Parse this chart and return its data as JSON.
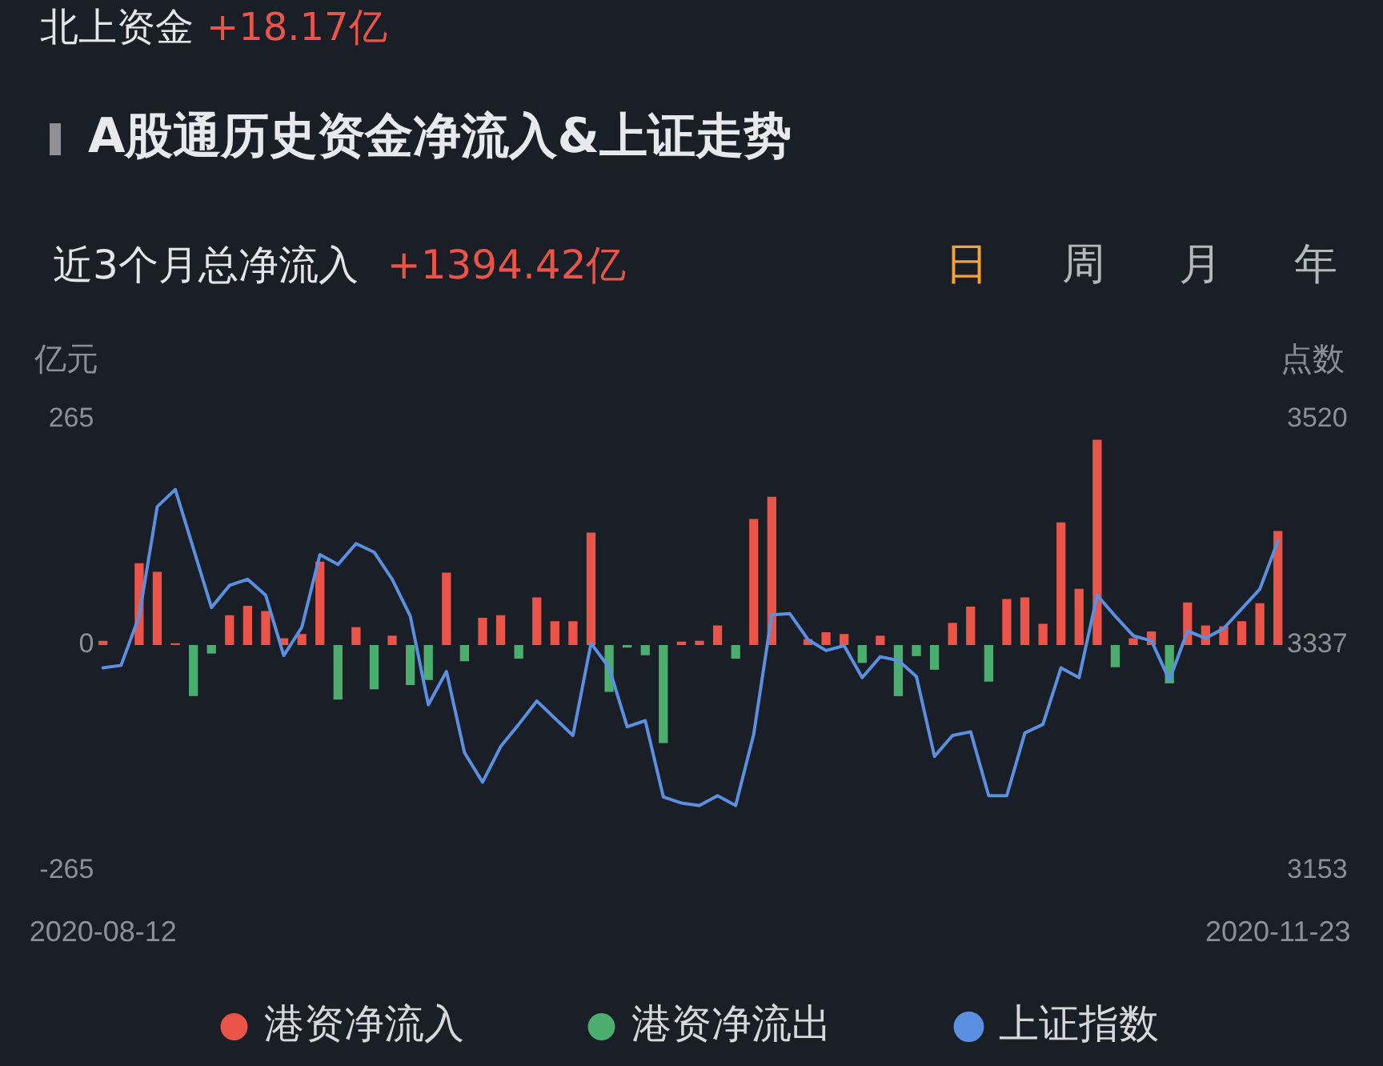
{
  "chart_data": {
    "type": "bar",
    "title": "A股通历史资金净流入&上证走势",
    "annotations": [
      "北上资金",
      "+18.17亿",
      "近3个月总净流入",
      "+1394.42亿",
      "日",
      "周",
      "月",
      "年"
    ],
    "ylabel": "亿元",
    "y2label": "点数",
    "categories": [
      "2020-08-12",
      null,
      null,
      null,
      null,
      null,
      null,
      null,
      null,
      null,
      null,
      null,
      null,
      null,
      null,
      null,
      null,
      null,
      null,
      null,
      null,
      null,
      null,
      null,
      null,
      null,
      null,
      null,
      null,
      null,
      null,
      null,
      null,
      null,
      null,
      null,
      null,
      null,
      null,
      null,
      null,
      null,
      null,
      null,
      null,
      null,
      null,
      null,
      null,
      null,
      null,
      null,
      null,
      null,
      null,
      null,
      null,
      null,
      null,
      null,
      null,
      null,
      null,
      null,
      null,
      "2020-11-23"
    ],
    "series": [
      {
        "name": "港资净流入",
        "color": "#ea5449",
        "values": [
          5,
          null,
          96,
          86,
          2,
          null,
          null,
          35,
          46,
          40,
          8,
          13,
          98,
          null,
          21,
          null,
          11,
          null,
          null,
          85,
          null,
          32,
          35,
          null,
          56,
          28,
          28,
          132,
          null,
          null,
          null,
          null,
          4,
          5,
          23,
          null,
          148,
          174,
          null,
          7,
          15,
          13,
          null,
          11,
          null,
          null,
          null,
          26,
          45,
          null,
          54,
          56,
          25,
          144,
          66,
          241,
          null,
          8,
          16,
          null,
          50,
          23,
          22,
          28,
          49,
          134
        ]
      },
      {
        "name": "港资净流出",
        "color": "#4cae6e",
        "values": [
          null,
          null,
          null,
          null,
          null,
          -60,
          -10,
          null,
          null,
          null,
          null,
          null,
          null,
          -64,
          null,
          -52,
          null,
          -47,
          -41,
          null,
          -19,
          null,
          null,
          -16,
          null,
          null,
          null,
          null,
          -55,
          -3,
          -12,
          -115,
          null,
          null,
          null,
          -16,
          null,
          null,
          null,
          null,
          null,
          null,
          -21,
          null,
          -60,
          -13,
          -29,
          null,
          null,
          -43,
          null,
          null,
          null,
          null,
          null,
          null,
          -26,
          null,
          null,
          -45,
          null,
          null,
          null,
          null,
          null,
          null
        ]
      },
      {
        "name": "上证指数",
        "type": "line",
        "axis": "y2",
        "color": "#5a8fe2",
        "values": [
          3318,
          3320,
          3360,
          3449,
          3463,
          3415,
          3367,
          3385,
          3390,
          3377,
          3328,
          3351,
          3410,
          3402,
          3419,
          3412,
          3390,
          3360,
          3288,
          3315,
          3249,
          3225,
          3254,
          3272,
          3291,
          3277,
          3263,
          3338,
          3318,
          3270,
          3275,
          3213,
          3208,
          3206,
          3214,
          3206,
          3264,
          3361,
          3362,
          3341,
          3332,
          3336,
          3310,
          3327,
          3324,
          3311,
          3246,
          3263,
          3266,
          3214,
          3214,
          3265,
          3272,
          3318,
          3310,
          3377,
          3360,
          3344,
          3340,
          3308,
          3348,
          3342,
          3350,
          3366,
          3382,
          3421
        ]
      }
    ],
    "ylim": [
      -265,
      265
    ],
    "yticks": [
      -265,
      0,
      265
    ],
    "y2lim": [
      3153,
      3520
    ],
    "y2ticks": [
      3153,
      3337,
      3520
    ],
    "legend": "bottom"
  }
}
